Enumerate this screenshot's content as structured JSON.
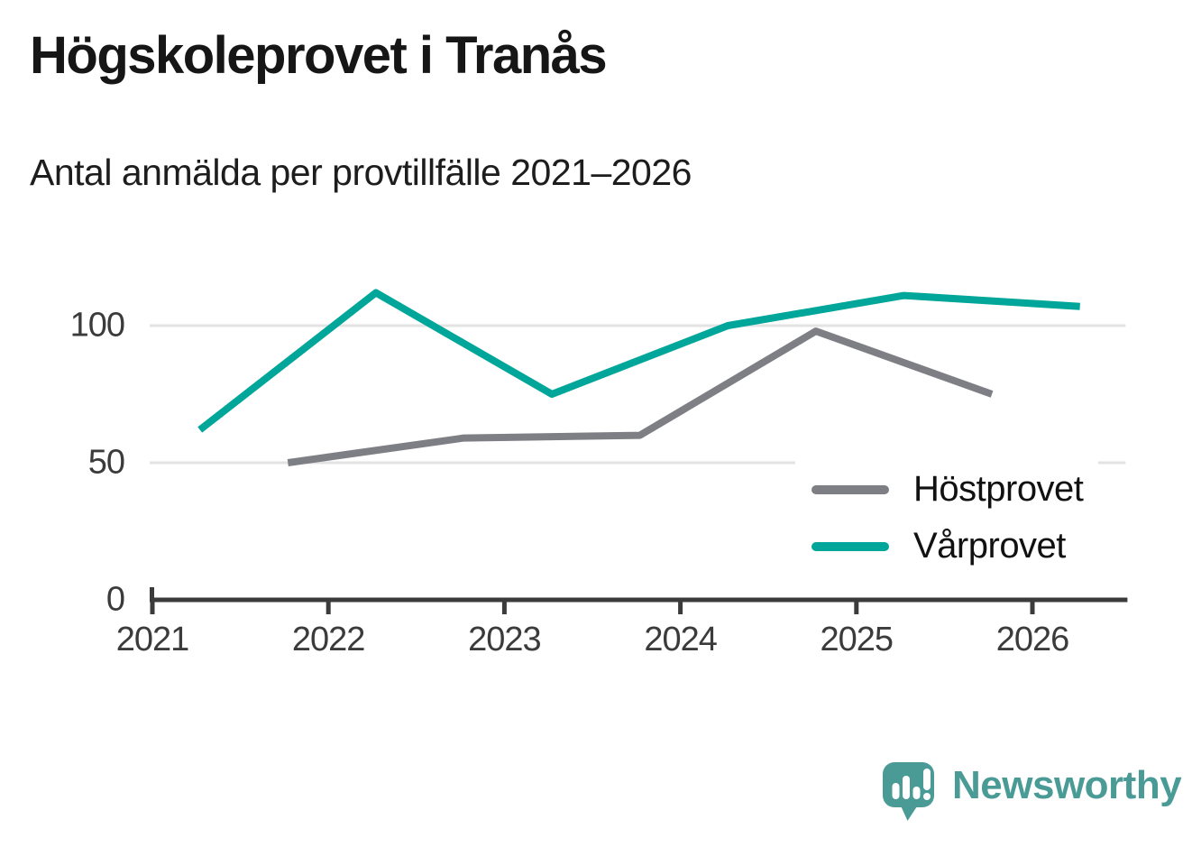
{
  "header": {
    "title": "Högskoleprovet i Tranås",
    "subtitle": "Antal anmälda per provtillfälle 2021–2026"
  },
  "chart_data": {
    "type": "line",
    "title": "Högskoleprovet i Tranås",
    "subtitle": "Antal anmälda per provtillfälle 2021–2026",
    "xlabel": "",
    "ylabel": "",
    "x_tick_labels": [
      "2021",
      "2022",
      "2023",
      "2024",
      "2025",
      "2026"
    ],
    "x_tick_positions": [
      2021,
      2022,
      2023,
      2024,
      2025,
      2026
    ],
    "y_tick_labels": [
      "0",
      "50",
      "100"
    ],
    "y_tick_positions": [
      0,
      50,
      100
    ],
    "xlim": [
      2021,
      2026.54
    ],
    "ylim": [
      0,
      119
    ],
    "grid": "horizontal-gridlines-at-50-and-100",
    "legend_position": "inside-right-middle",
    "series": [
      {
        "name": "Höstprovet",
        "color": "#7e7e85",
        "x": [
          2021.77,
          2022.77,
          2023.77,
          2024.77,
          2025.77
        ],
        "values": [
          50,
          59,
          60,
          98,
          75
        ]
      },
      {
        "name": "Vårprovet",
        "color": "#00a69a",
        "x": [
          2021.27,
          2022.27,
          2023.27,
          2024.27,
          2025.27,
          2026.27
        ],
        "values": [
          62,
          112,
          75,
          100,
          111,
          107
        ]
      }
    ]
  },
  "style_colors": {
    "axis": "#3b3b3b",
    "gridline": "#e3e3e3",
    "tick_text": "#3b3b3b"
  },
  "logo": {
    "wordmark": "Newsworthy",
    "color": "#4a9b96",
    "icon": "newsworthy-speech-bubble-bar-chart-icon"
  }
}
